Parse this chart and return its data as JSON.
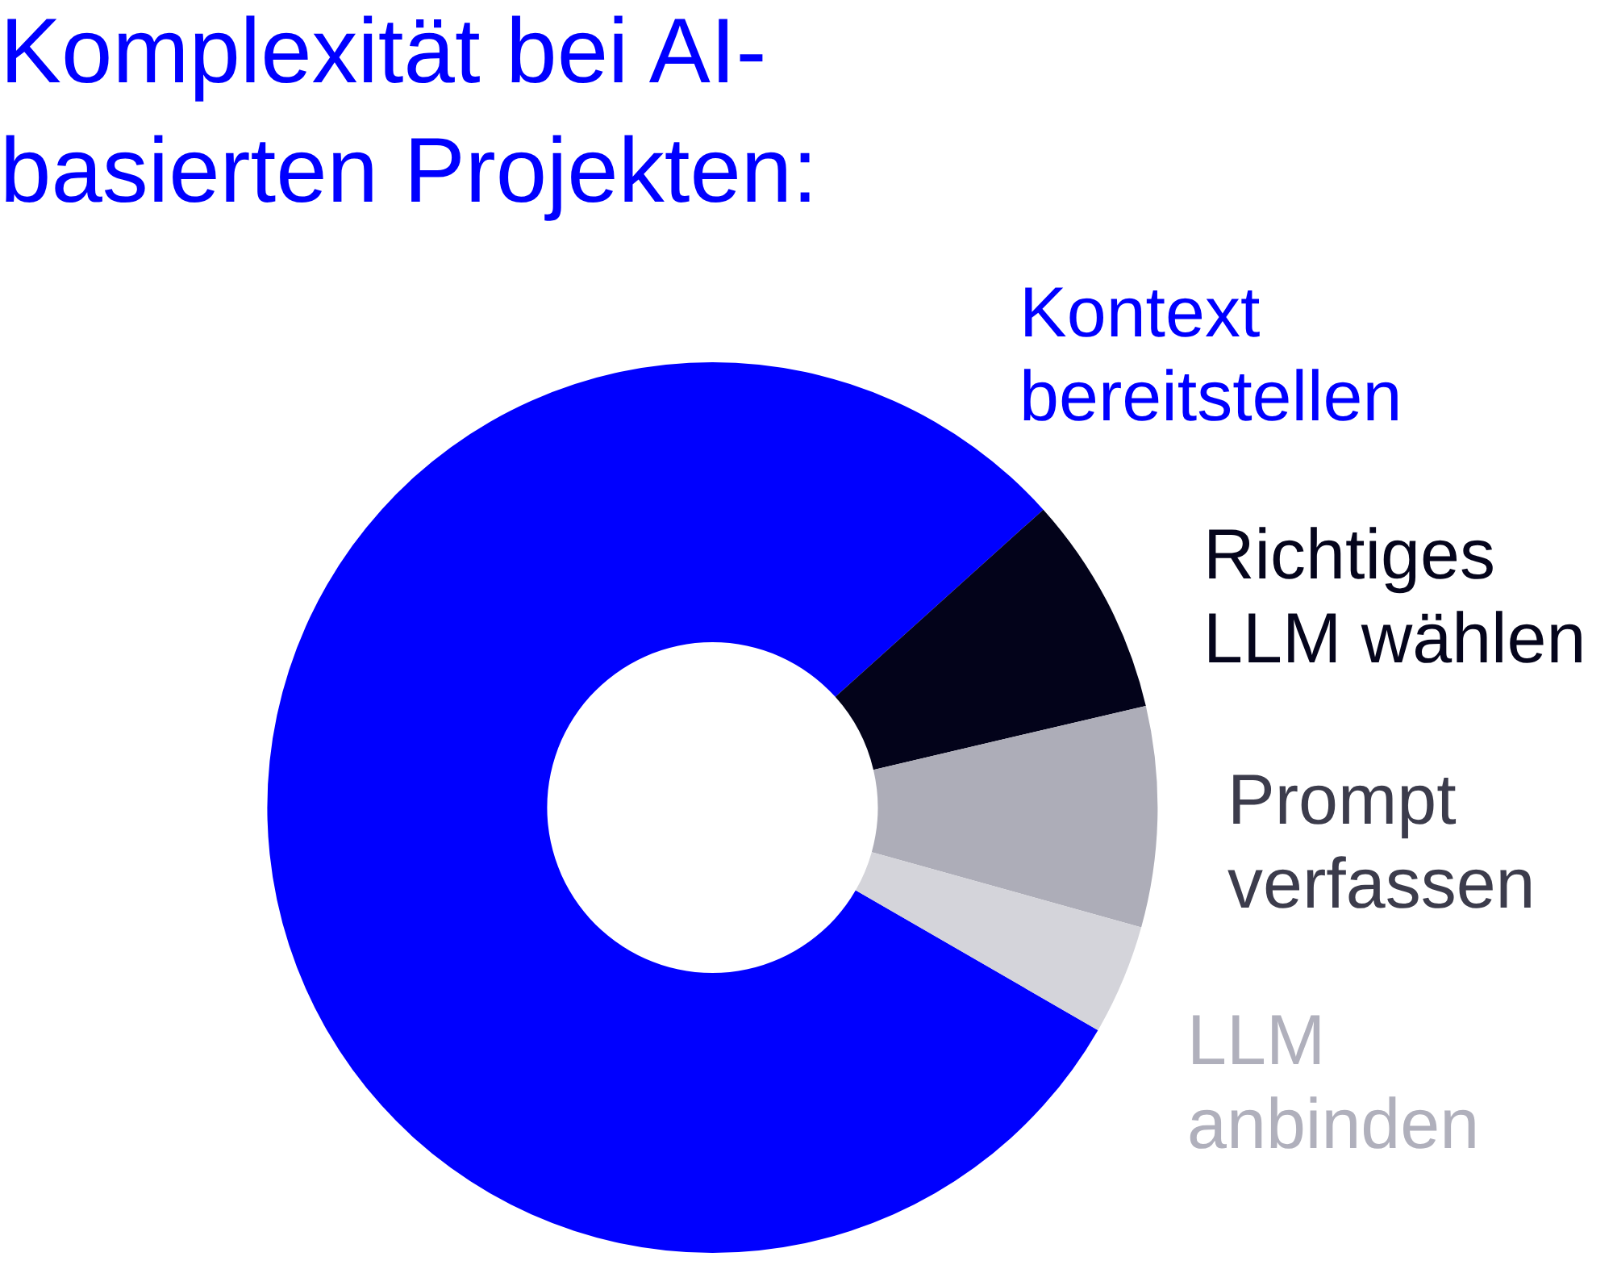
{
  "chart_data": {
    "type": "donut",
    "title": "Komplexität bei AI-basierten Projekten:",
    "categories": [
      "Kontext bereitstellen",
      "Richtiges LLM wählen",
      "Prompt verfassen",
      "LLM anbinden"
    ],
    "values": [
      80,
      8,
      8,
      4
    ],
    "colors": [
      "#0000ff",
      "#03031a",
      "#adadb8",
      "#d4d4da"
    ]
  }
}
